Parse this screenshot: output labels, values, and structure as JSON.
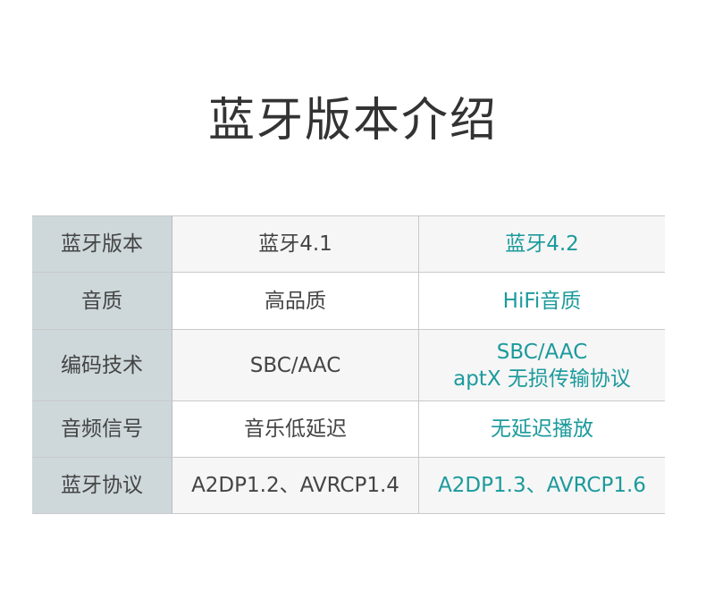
{
  "title": "蓝牙版本介绍",
  "accent_color": "#1c9a9c",
  "rows": [
    {
      "label": "蓝牙版本",
      "v41": [
        "蓝牙4.1"
      ],
      "v42": [
        "蓝牙4.2"
      ]
    },
    {
      "label": "音质",
      "v41": [
        "高品质"
      ],
      "v42": [
        "HiFi音质"
      ]
    },
    {
      "label": "编码技术",
      "v41": [
        "SBC/AAC"
      ],
      "v42": [
        "SBC/AAC",
        "aptX 无损传输协议"
      ]
    },
    {
      "label": "音频信号",
      "v41": [
        "音乐低延迟"
      ],
      "v42": [
        "无延迟播放"
      ]
    },
    {
      "label": "蓝牙协议",
      "v41": [
        "A2DP1.2、AVRCP1.4"
      ],
      "v42": [
        "A2DP1.3、AVRCP1.6"
      ]
    }
  ]
}
